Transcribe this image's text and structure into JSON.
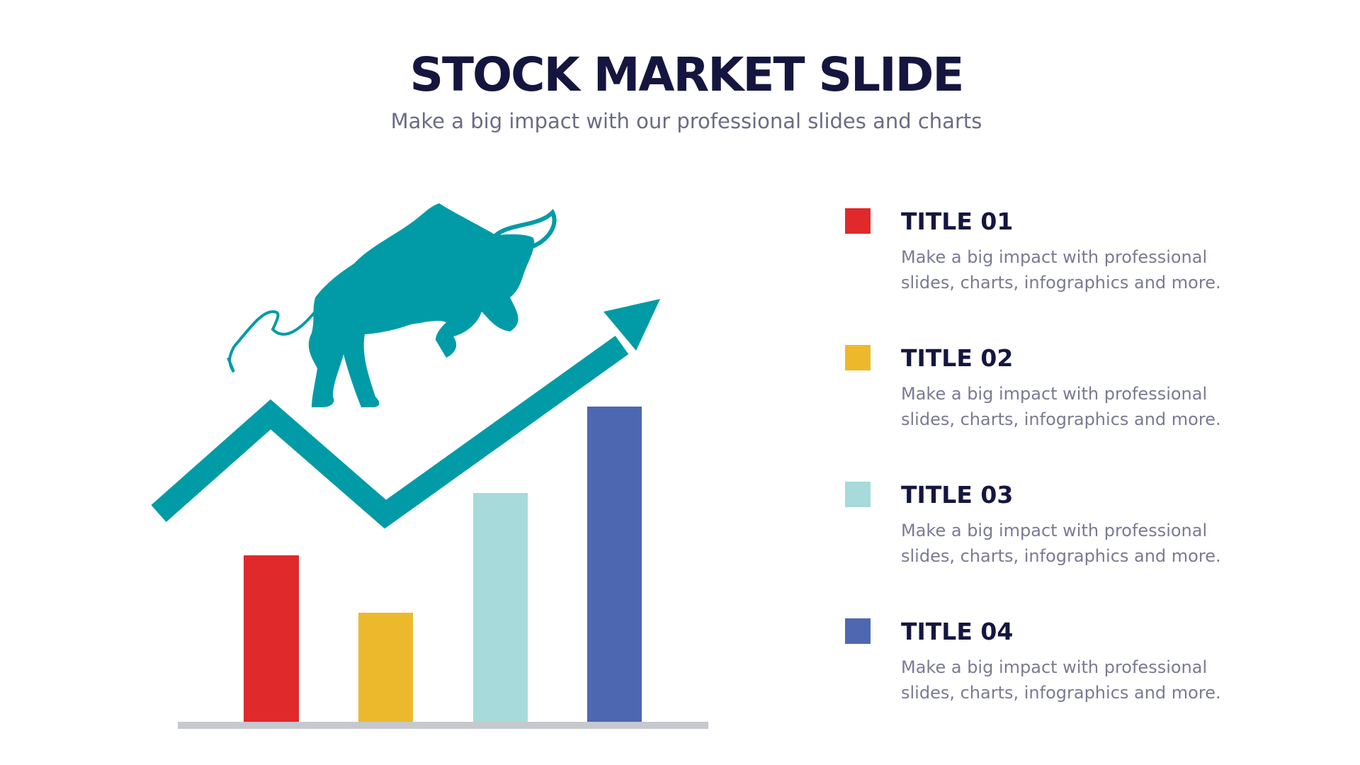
{
  "header": {
    "title": "STOCK MARKET SLIDE",
    "subtitle": "Make a big impact with our professional slides and charts"
  },
  "items": [
    {
      "title": "TITLE 01",
      "lines": [
        "Make a big impact with professional",
        "slides, charts, infographics and more."
      ]
    },
    {
      "title": "TITLE 02",
      "lines": [
        "Make a big impact with professional",
        "slides, charts, infographics and more."
      ]
    },
    {
      "title": "TITLE 03",
      "lines": [
        "Make a big impact with professional",
        "slides, charts, infographics and more."
      ]
    },
    {
      "title": "TITLE 04",
      "lines": [
        "Make a big impact with professional",
        "slides, charts, infographics and more."
      ]
    }
  ]
}
